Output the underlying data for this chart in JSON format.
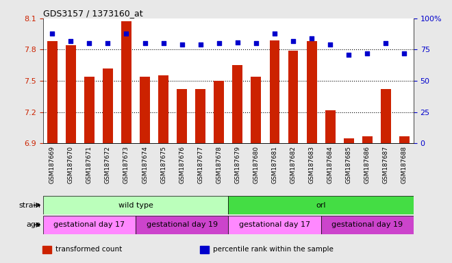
{
  "title": "GDS3157 / 1373160_at",
  "samples": [
    "GSM187669",
    "GSM187670",
    "GSM187671",
    "GSM187672",
    "GSM187673",
    "GSM187674",
    "GSM187675",
    "GSM187676",
    "GSM187677",
    "GSM187678",
    "GSM187679",
    "GSM187680",
    "GSM187681",
    "GSM187682",
    "GSM187683",
    "GSM187684",
    "GSM187685",
    "GSM187686",
    "GSM187687",
    "GSM187688"
  ],
  "bar_values": [
    7.88,
    7.84,
    7.54,
    7.62,
    8.07,
    7.54,
    7.55,
    7.42,
    7.42,
    7.5,
    7.65,
    7.54,
    7.89,
    7.79,
    7.88,
    7.22,
    6.95,
    6.97,
    7.42,
    6.97
  ],
  "dot_values": [
    88,
    82,
    80,
    80,
    88,
    80,
    80,
    79,
    79,
    80,
    81,
    80,
    88,
    82,
    84,
    79,
    71,
    72,
    80,
    72
  ],
  "ylim_left": [
    6.9,
    8.1
  ],
  "ylim_right": [
    0,
    100
  ],
  "yticks_left": [
    6.9,
    7.2,
    7.5,
    7.8,
    8.1
  ],
  "yticks_right": [
    0,
    25,
    50,
    75,
    100
  ],
  "ytick_labels_left": [
    "6.9",
    "7.2",
    "7.5",
    "7.8",
    "8.1"
  ],
  "ytick_labels_right": [
    "0",
    "25",
    "50",
    "75",
    "100%"
  ],
  "hlines": [
    7.2,
    7.5,
    7.8
  ],
  "bar_color": "#cc2200",
  "dot_color": "#0000cc",
  "bar_bottom": 6.9,
  "strain_labels": [
    {
      "label": "wild type",
      "start": 0,
      "end": 10,
      "color": "#bbffbb"
    },
    {
      "label": "orl",
      "start": 10,
      "end": 20,
      "color": "#44dd44"
    }
  ],
  "age_labels": [
    {
      "label": "gestational day 17",
      "start": 0,
      "end": 5,
      "color": "#ff88ff"
    },
    {
      "label": "gestational day 19",
      "start": 5,
      "end": 10,
      "color": "#cc44cc"
    },
    {
      "label": "gestational day 17",
      "start": 10,
      "end": 15,
      "color": "#ff88ff"
    },
    {
      "label": "gestational day 19",
      "start": 15,
      "end": 20,
      "color": "#cc44cc"
    }
  ],
  "legend_items": [
    {
      "color": "#cc2200",
      "label": "transformed count"
    },
    {
      "color": "#0000cc",
      "label": "percentile rank within the sample"
    }
  ],
  "bg_color": "#e8e8e8",
  "plot_bg_color": "#ffffff"
}
